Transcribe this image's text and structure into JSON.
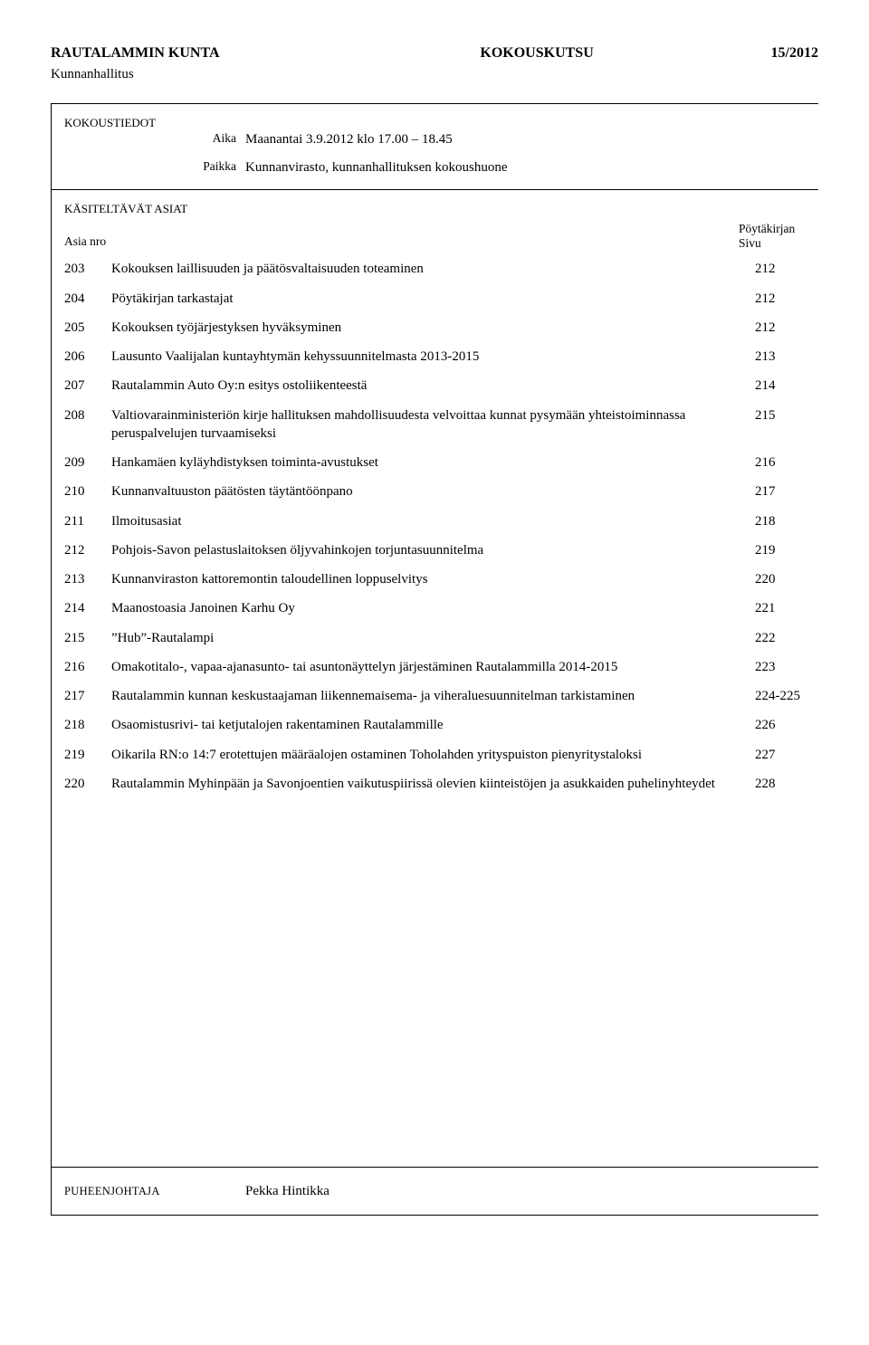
{
  "header": {
    "org": "RAUTALAMMIN KUNTA",
    "doc_type": "KOKOUSKUTSU",
    "meeting_no": "15/2012",
    "body": "Kunnanhallitus"
  },
  "meta": {
    "label_kokoustiedot": "KOKOUSTIEDOT",
    "label_aika": "Aika",
    "label_paikka": "Paikka",
    "aika": "Maanantai 3.9.2012 klo 17.00 – 18.45",
    "paikka": "Kunnanvirasto, kunnanhallituksen kokoushuone"
  },
  "agenda": {
    "label_kasiteltavat": "KÄSITELTÄVÄT ASIAT",
    "label_asia_nro": "Asia nro",
    "label_poytakirjan": "Pöytäkirjan",
    "label_sivu": "Sivu",
    "items": [
      {
        "no": "203",
        "text": "Kokouksen laillisuuden ja päätösvaltaisuuden toteaminen",
        "page": "212"
      },
      {
        "no": "204",
        "text": "Pöytäkirjan tarkastajat",
        "page": "212"
      },
      {
        "no": "205",
        "text": "Kokouksen työjärjestyksen hyväksyminen",
        "page": "212"
      },
      {
        "no": "206",
        "text": "Lausunto Vaalijalan kuntayhtymän kehyssuunnitelmasta 2013-2015",
        "page": "213"
      },
      {
        "no": "207",
        "text": "Rautalammin Auto Oy:n esitys ostoliikenteestä",
        "page": "214"
      },
      {
        "no": "208",
        "text": "Valtiovarainministeriön kirje hallituksen mahdollisuudesta velvoittaa kunnat pysymään yhteistoiminnassa peruspalvelujen turvaamiseksi",
        "page": "215"
      },
      {
        "no": "209",
        "text": "Hankamäen kyläyhdistyksen toiminta-avustukset",
        "page": "216"
      },
      {
        "no": "210",
        "text": "Kunnanvaltuuston päätösten täytäntöönpano",
        "page": "217"
      },
      {
        "no": "211",
        "text": "Ilmoitusasiat",
        "page": "218"
      },
      {
        "no": "212",
        "text": "Pohjois-Savon pelastuslaitoksen öljyvahinkojen torjuntasuunnitelma",
        "page": "219"
      },
      {
        "no": "213",
        "text": "Kunnanviraston kattoremontin taloudellinen loppuselvitys",
        "page": "220"
      },
      {
        "no": "214",
        "text": "Maanostoasia Janoinen Karhu Oy",
        "page": "221"
      },
      {
        "no": "215",
        "text": "”Hub”-Rautalampi",
        "page": "222"
      },
      {
        "no": "216",
        "text": "Omakotitalo-, vapaa-ajanasunto- tai asuntonäyttelyn järjestäminen Rautalammilla 2014-2015",
        "page": "223"
      },
      {
        "no": "217",
        "text": "Rautalammin kunnan keskustaajaman liikennemaisema- ja viheraluesuunnitelman tarkistaminen",
        "page": "224-225"
      },
      {
        "no": "218",
        "text": "Osaomistusrivi- tai ketjutalojen rakentaminen Rautalammille",
        "page": "226"
      },
      {
        "no": "219",
        "text": "Oikarila RN:o 14:7 erotettujen määräalojen ostaminen Toholahden yrityspuiston pienyritystaloksi",
        "page": "227"
      },
      {
        "no": "220",
        "text": "Rautalammin Myhinpään ja Savonjoentien vaikutuspiirissä olevien kiinteistöjen ja asukkaiden puhelinyhteydet",
        "page": "228"
      }
    ]
  },
  "footer": {
    "label": "PUHEENJOHTAJA",
    "name": "Pekka Hintikka"
  }
}
